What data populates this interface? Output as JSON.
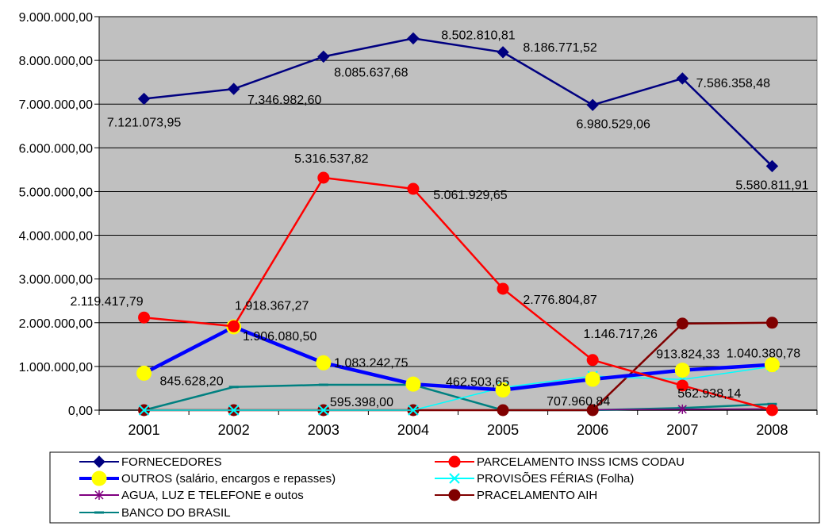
{
  "chart_data": {
    "type": "line",
    "categories": [
      "2001",
      "2002",
      "2003",
      "2004",
      "2005",
      "2006",
      "2007",
      "2008"
    ],
    "ylim": [
      0,
      9000000
    ],
    "ytick_labels": [
      "0,00",
      "1.000.000,00",
      "2.000.000,00",
      "3.000.000,00",
      "4.000.000,00",
      "5.000.000,00",
      "6.000.000,00",
      "7.000.000,00",
      "8.000.000,00",
      "9.000.000,00"
    ],
    "plot_background": "#c0c0c0",
    "grid": true,
    "legend_position": "bottom",
    "series": [
      {
        "name": "FORNECEDORES",
        "color": "#000080",
        "marker": "diamond",
        "values": [
          7121073.95,
          7346982.6,
          8085637.68,
          8502810.81,
          8186771.52,
          6980529.06,
          7586358.48,
          5580811.91
        ],
        "labels": [
          "7.121.073,95",
          "7.346.982,60",
          "8.085.637,68",
          "8.502.810,81",
          "8.186.771,52",
          "6.980.529,06",
          "7.586.358,48",
          "5.580.811,91"
        ]
      },
      {
        "name": "PARCELAMENTO INSS ICMS CODAU",
        "color": "#ff0000",
        "marker": "circle",
        "values": [
          2119417.79,
          1918367.27,
          5316537.82,
          5061929.65,
          2776804.87,
          1146717.26,
          562938.14,
          0
        ],
        "labels": [
          "2.119.417,79",
          "1.918.367,27",
          "5.316.537,82",
          "5.061.929,65",
          "2.776.804,87",
          "1.146.717,26",
          "562.938,14",
          ""
        ]
      },
      {
        "name": "OUTROS (salário, encargos e  repasses)",
        "color": "#0000ff",
        "marker": "yellow-circle",
        "values": [
          845628.2,
          1906080.5,
          1083242.75,
          595398.0,
          462503.65,
          707960.84,
          913824.33,
          1040380.78
        ],
        "labels": [
          "845.628,20",
          "1.906.080,50",
          "1.083.242,75",
          "595.398,00",
          "462.503,65",
          "707.960,84",
          "913.824,33",
          "1.040.380,78"
        ]
      },
      {
        "name": "PROVISÕES FÉRIAS (Folha)",
        "color": "#00ffff",
        "marker": "x",
        "values": [
          0,
          0,
          0,
          0,
          520000,
          780000,
          700000,
          1000000
        ],
        "labels": []
      },
      {
        "name": "AGUA, LUZ E TELEFONE e outos",
        "color": "#800080",
        "marker": "star",
        "values": [
          0,
          0,
          0,
          0,
          0,
          10000,
          20000,
          30000
        ],
        "labels": []
      },
      {
        "name": "PRACELAMENTO AIH",
        "color": "#800000",
        "marker": "circle",
        "values": [
          0,
          0,
          0,
          0,
          0,
          0,
          1980000,
          2000000
        ],
        "labels": []
      },
      {
        "name": "BANCO DO BRASIL",
        "color": "#008080",
        "marker": "dash",
        "values": [
          0,
          530000,
          580000,
          580000,
          0,
          0,
          50000,
          140000
        ],
        "labels": []
      }
    ]
  }
}
